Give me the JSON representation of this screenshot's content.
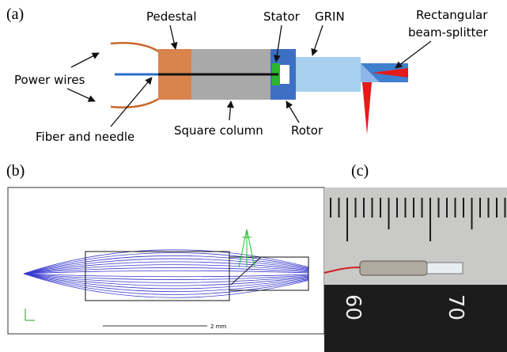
{
  "panel_a": {
    "tag": "(a)",
    "pedestal": "Pedestal",
    "stator": "Stator",
    "grin": "GRIN",
    "splitter_line1": "Rectangular",
    "splitter_line2": "beam-splitter",
    "power_wires": "Power wires",
    "fiber": "Fiber and needle",
    "column": "Square column",
    "rotor": "Rotor"
  },
  "panel_b": {
    "tag": "(b)",
    "scale": "2 mm"
  },
  "panel_c": {
    "tag": "(c)",
    "ruler_left": "60",
    "ruler_right": "70"
  }
}
